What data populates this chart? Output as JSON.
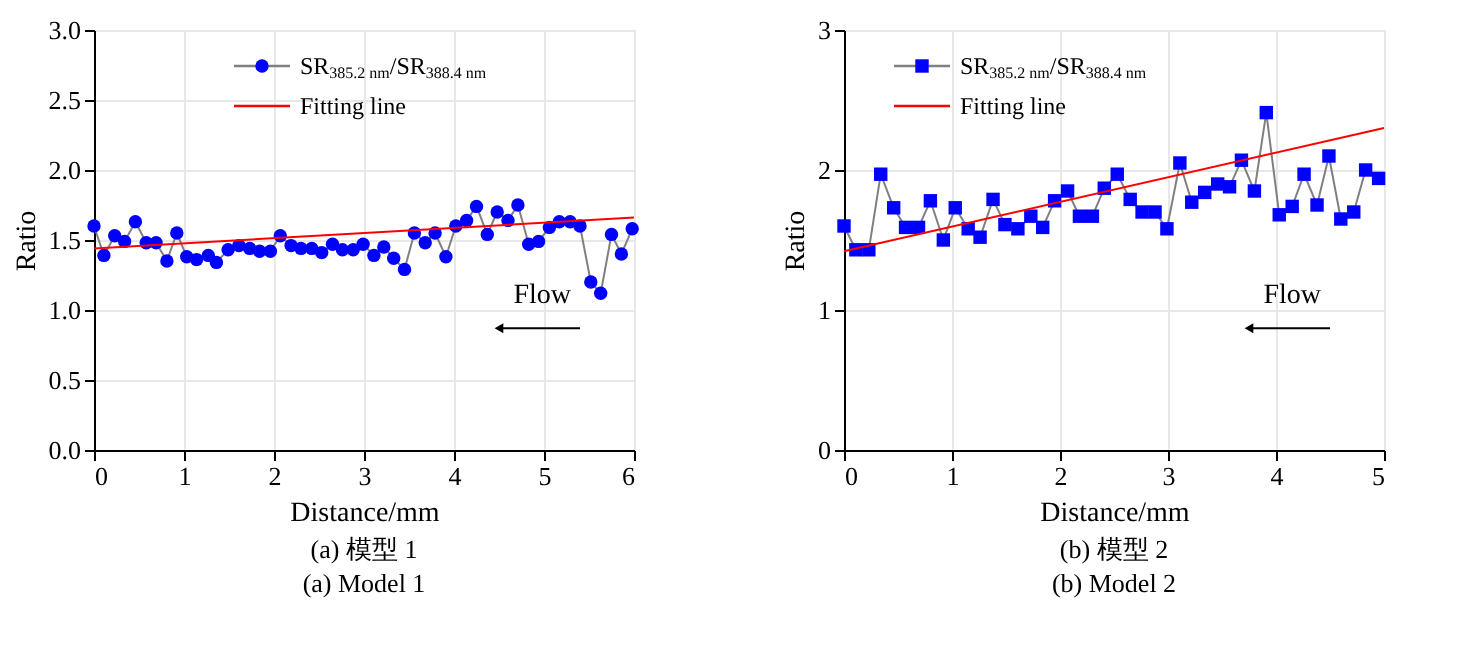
{
  "chart_data": [
    {
      "type": "line",
      "xlabel": "Distance/mm",
      "ylabel": "Ratio",
      "xlim": [
        0,
        6
      ],
      "xticks": [
        0,
        1,
        2,
        3,
        4,
        5,
        6
      ],
      "ylim": [
        0,
        3
      ],
      "yticks": [
        {
          "value": 0,
          "label": "0.0"
        },
        0.5,
        {
          "value": 1,
          "label": "1.0"
        },
        1.5,
        {
          "value": 2,
          "label": "2.0"
        },
        2.5,
        {
          "value": 3,
          "label": "3.0"
        }
      ],
      "grid": true,
      "legend": "top right",
      "annotations": [
        "Flow",
        "(a) 模型 1",
        "(a) Model 1"
      ],
      "series": [
        {
          "name": "SR$_{385.2 nm}$/SR$_{388.4 nm}$",
          "color": "#0000ff",
          "marker": "circle",
          "x": [
            0,
            0.11,
            0.23,
            0.34,
            0.46,
            0.58,
            0.69,
            0.81,
            0.92,
            1.03,
            1.14,
            1.27,
            1.36,
            1.49,
            1.61,
            1.73,
            1.84,
            1.96,
            2.07,
            2.19,
            2.3,
            2.42,
            2.53,
            2.65,
            2.76,
            2.88,
            2.99,
            3.11,
            3.22,
            3.33,
            3.45,
            3.56,
            3.68,
            3.79,
            3.91,
            4.02,
            4.14,
            4.25,
            4.37,
            4.48,
            4.6,
            4.71,
            4.83,
            4.94,
            5.06,
            5.17,
            5.29,
            5.4,
            5.52,
            5.63,
            5.75,
            5.86,
            5.98
          ],
          "values": [
            1.6,
            1.39,
            1.53,
            1.49,
            1.63,
            1.48,
            1.48,
            1.35,
            1.55,
            1.38,
            1.36,
            1.39,
            1.34,
            1.43,
            1.46,
            1.44,
            1.42,
            1.42,
            1.53,
            1.46,
            1.44,
            1.44,
            1.41,
            1.47,
            1.43,
            1.43,
            1.47,
            1.39,
            1.45,
            1.37,
            1.29,
            1.55,
            1.48,
            1.55,
            1.38,
            1.6,
            1.64,
            1.74,
            1.54,
            1.7,
            1.64,
            1.75,
            1.47,
            1.49,
            1.59,
            1.63,
            1.63,
            1.6,
            1.2,
            1.12,
            1.54,
            1.4,
            1.58
          ]
        },
        {
          "name": "Fitting line",
          "color": "#ff0000",
          "marker": "none",
          "x": [
            0,
            6
          ],
          "values": [
            1.44,
            1.66
          ]
        }
      ]
    },
    {
      "type": "line",
      "xlabel": "Distance/mm",
      "ylabel": "Ratio",
      "xlim": [
        0,
        5
      ],
      "xticks": [
        0,
        1,
        2,
        3,
        4,
        5
      ],
      "ylim": [
        0,
        3
      ],
      "yticks": [
        0,
        1,
        2,
        3
      ],
      "grid": true,
      "legend": "top left",
      "annotations": [
        "Flow",
        "(b) 模型 2",
        "(b) Model 2"
      ],
      "series": [
        {
          "name": "SR$_{385.2 nm}$/SR$_{388.4 nm}$",
          "color": "#0000ff",
          "marker": "square",
          "x": [
            0,
            0.11,
            0.23,
            0.34,
            0.46,
            0.57,
            0.69,
            0.8,
            0.92,
            1.03,
            1.15,
            1.26,
            1.38,
            1.49,
            1.61,
            1.73,
            1.84,
            1.95,
            2.07,
            2.18,
            2.3,
            2.41,
            2.53,
            2.65,
            2.76,
            2.88,
            2.99,
            3.11,
            3.22,
            3.34,
            3.46,
            3.57,
            3.68,
            3.8,
            3.91,
            4.03,
            4.15,
            4.26,
            4.38,
            4.49,
            4.6,
            4.72,
            4.83,
            4.95
          ],
          "values": [
            1.6,
            1.43,
            1.43,
            1.97,
            1.73,
            1.59,
            1.59,
            1.78,
            1.5,
            1.73,
            1.58,
            1.52,
            1.79,
            1.61,
            1.58,
            1.67,
            1.59,
            1.78,
            1.85,
            1.67,
            1.67,
            1.87,
            1.97,
            1.79,
            1.7,
            1.7,
            1.58,
            2.05,
            1.77,
            1.84,
            1.9,
            1.88,
            2.07,
            1.85,
            2.41,
            1.68,
            1.74,
            1.97,
            1.75,
            2.1,
            1.65,
            1.7,
            2.0,
            1.94
          ]
        },
        {
          "name": "Fitting line",
          "color": "#ff0000",
          "marker": "none",
          "x": [
            0,
            5
          ],
          "values": [
            1.42,
            2.3
          ]
        }
      ]
    }
  ]
}
